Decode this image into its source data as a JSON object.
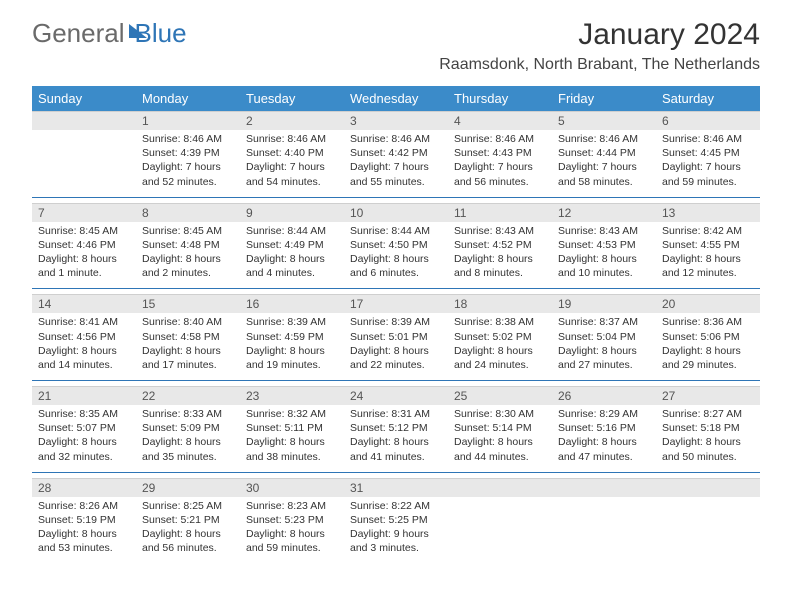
{
  "brand": {
    "part1": "General",
    "part2": "Blue"
  },
  "title": "January 2024",
  "location": "Raamsdonk, North Brabant, The Netherlands",
  "colors": {
    "header_bg": "#3b8bc9",
    "header_text": "#ffffff",
    "daynum_bg": "#e8e8e8",
    "daynum_text": "#555555",
    "row_divider": "#2e75b6",
    "brand_gray": "#6a6a6a",
    "brand_blue": "#2e75b6",
    "body_text": "#333333",
    "background": "#ffffff"
  },
  "typography": {
    "title_fontsize": 30,
    "location_fontsize": 16,
    "dow_fontsize": 13,
    "daynum_fontsize": 12,
    "cell_fontsize": 10.5,
    "logo_fontsize": 26
  },
  "days_of_week": [
    "Sunday",
    "Monday",
    "Tuesday",
    "Wednesday",
    "Thursday",
    "Friday",
    "Saturday"
  ],
  "weeks": [
    {
      "nums": [
        "",
        "1",
        "2",
        "3",
        "4",
        "5",
        "6"
      ],
      "cells": [
        {
          "sunrise": "",
          "sunset": "",
          "daylight": ""
        },
        {
          "sunrise": "Sunrise: 8:46 AM",
          "sunset": "Sunset: 4:39 PM",
          "daylight": "Daylight: 7 hours and 52 minutes."
        },
        {
          "sunrise": "Sunrise: 8:46 AM",
          "sunset": "Sunset: 4:40 PM",
          "daylight": "Daylight: 7 hours and 54 minutes."
        },
        {
          "sunrise": "Sunrise: 8:46 AM",
          "sunset": "Sunset: 4:42 PM",
          "daylight": "Daylight: 7 hours and 55 minutes."
        },
        {
          "sunrise": "Sunrise: 8:46 AM",
          "sunset": "Sunset: 4:43 PM",
          "daylight": "Daylight: 7 hours and 56 minutes."
        },
        {
          "sunrise": "Sunrise: 8:46 AM",
          "sunset": "Sunset: 4:44 PM",
          "daylight": "Daylight: 7 hours and 58 minutes."
        },
        {
          "sunrise": "Sunrise: 8:46 AM",
          "sunset": "Sunset: 4:45 PM",
          "daylight": "Daylight: 7 hours and 59 minutes."
        }
      ]
    },
    {
      "nums": [
        "7",
        "8",
        "9",
        "10",
        "11",
        "12",
        "13"
      ],
      "cells": [
        {
          "sunrise": "Sunrise: 8:45 AM",
          "sunset": "Sunset: 4:46 PM",
          "daylight": "Daylight: 8 hours and 1 minute."
        },
        {
          "sunrise": "Sunrise: 8:45 AM",
          "sunset": "Sunset: 4:48 PM",
          "daylight": "Daylight: 8 hours and 2 minutes."
        },
        {
          "sunrise": "Sunrise: 8:44 AM",
          "sunset": "Sunset: 4:49 PM",
          "daylight": "Daylight: 8 hours and 4 minutes."
        },
        {
          "sunrise": "Sunrise: 8:44 AM",
          "sunset": "Sunset: 4:50 PM",
          "daylight": "Daylight: 8 hours and 6 minutes."
        },
        {
          "sunrise": "Sunrise: 8:43 AM",
          "sunset": "Sunset: 4:52 PM",
          "daylight": "Daylight: 8 hours and 8 minutes."
        },
        {
          "sunrise": "Sunrise: 8:43 AM",
          "sunset": "Sunset: 4:53 PM",
          "daylight": "Daylight: 8 hours and 10 minutes."
        },
        {
          "sunrise": "Sunrise: 8:42 AM",
          "sunset": "Sunset: 4:55 PM",
          "daylight": "Daylight: 8 hours and 12 minutes."
        }
      ]
    },
    {
      "nums": [
        "14",
        "15",
        "16",
        "17",
        "18",
        "19",
        "20"
      ],
      "cells": [
        {
          "sunrise": "Sunrise: 8:41 AM",
          "sunset": "Sunset: 4:56 PM",
          "daylight": "Daylight: 8 hours and 14 minutes."
        },
        {
          "sunrise": "Sunrise: 8:40 AM",
          "sunset": "Sunset: 4:58 PM",
          "daylight": "Daylight: 8 hours and 17 minutes."
        },
        {
          "sunrise": "Sunrise: 8:39 AM",
          "sunset": "Sunset: 4:59 PM",
          "daylight": "Daylight: 8 hours and 19 minutes."
        },
        {
          "sunrise": "Sunrise: 8:39 AM",
          "sunset": "Sunset: 5:01 PM",
          "daylight": "Daylight: 8 hours and 22 minutes."
        },
        {
          "sunrise": "Sunrise: 8:38 AM",
          "sunset": "Sunset: 5:02 PM",
          "daylight": "Daylight: 8 hours and 24 minutes."
        },
        {
          "sunrise": "Sunrise: 8:37 AM",
          "sunset": "Sunset: 5:04 PM",
          "daylight": "Daylight: 8 hours and 27 minutes."
        },
        {
          "sunrise": "Sunrise: 8:36 AM",
          "sunset": "Sunset: 5:06 PM",
          "daylight": "Daylight: 8 hours and 29 minutes."
        }
      ]
    },
    {
      "nums": [
        "21",
        "22",
        "23",
        "24",
        "25",
        "26",
        "27"
      ],
      "cells": [
        {
          "sunrise": "Sunrise: 8:35 AM",
          "sunset": "Sunset: 5:07 PM",
          "daylight": "Daylight: 8 hours and 32 minutes."
        },
        {
          "sunrise": "Sunrise: 8:33 AM",
          "sunset": "Sunset: 5:09 PM",
          "daylight": "Daylight: 8 hours and 35 minutes."
        },
        {
          "sunrise": "Sunrise: 8:32 AM",
          "sunset": "Sunset: 5:11 PM",
          "daylight": "Daylight: 8 hours and 38 minutes."
        },
        {
          "sunrise": "Sunrise: 8:31 AM",
          "sunset": "Sunset: 5:12 PM",
          "daylight": "Daylight: 8 hours and 41 minutes."
        },
        {
          "sunrise": "Sunrise: 8:30 AM",
          "sunset": "Sunset: 5:14 PM",
          "daylight": "Daylight: 8 hours and 44 minutes."
        },
        {
          "sunrise": "Sunrise: 8:29 AM",
          "sunset": "Sunset: 5:16 PM",
          "daylight": "Daylight: 8 hours and 47 minutes."
        },
        {
          "sunrise": "Sunrise: 8:27 AM",
          "sunset": "Sunset: 5:18 PM",
          "daylight": "Daylight: 8 hours and 50 minutes."
        }
      ]
    },
    {
      "nums": [
        "28",
        "29",
        "30",
        "31",
        "",
        "",
        ""
      ],
      "cells": [
        {
          "sunrise": "Sunrise: 8:26 AM",
          "sunset": "Sunset: 5:19 PM",
          "daylight": "Daylight: 8 hours and 53 minutes."
        },
        {
          "sunrise": "Sunrise: 8:25 AM",
          "sunset": "Sunset: 5:21 PM",
          "daylight": "Daylight: 8 hours and 56 minutes."
        },
        {
          "sunrise": "Sunrise: 8:23 AM",
          "sunset": "Sunset: 5:23 PM",
          "daylight": "Daylight: 8 hours and 59 minutes."
        },
        {
          "sunrise": "Sunrise: 8:22 AM",
          "sunset": "Sunset: 5:25 PM",
          "daylight": "Daylight: 9 hours and 3 minutes."
        },
        {
          "sunrise": "",
          "sunset": "",
          "daylight": ""
        },
        {
          "sunrise": "",
          "sunset": "",
          "daylight": ""
        },
        {
          "sunrise": "",
          "sunset": "",
          "daylight": ""
        }
      ]
    }
  ]
}
